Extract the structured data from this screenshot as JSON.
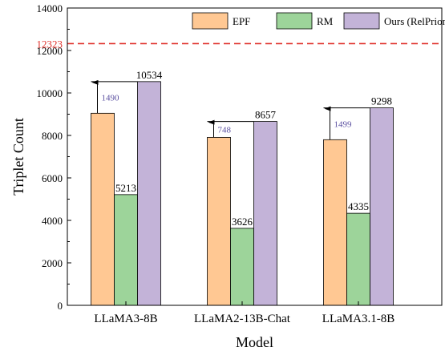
{
  "chart_data": {
    "type": "bar",
    "categories": [
      "LLaMA3-8B",
      "LLaMA2-13B-Chat",
      "LLaMA3.1-8B"
    ],
    "series": [
      {
        "name": "EPF",
        "values": [
          9044,
          7909,
          7799
        ],
        "color": "#ffc893"
      },
      {
        "name": "RM",
        "values": [
          5213,
          3626,
          4335
        ],
        "color": "#9dd49a"
      },
      {
        "name": "Ours (RelPrior)",
        "values": [
          10534,
          8657,
          9298
        ],
        "color": "#c3b3d8"
      }
    ],
    "data_labels": {
      "RM": [
        "5213",
        "3626",
        "4335"
      ],
      "Ours (RelPrior)": [
        "10534",
        "8657",
        "9298"
      ]
    },
    "improvements": [
      "1490",
      "748",
      "1499"
    ],
    "reference_line": {
      "value": 12323,
      "label": "12323",
      "color": "#e0302a"
    },
    "xlabel": "Model",
    "ylabel": "Triplet Count",
    "ylim": [
      0,
      14000
    ],
    "yticks": [
      "0",
      "2000",
      "4000",
      "6000",
      "8000",
      "10000",
      "12000",
      "14000"
    ],
    "legend_position": "top-right",
    "grid": false,
    "improvement_color": "#5a4fa0"
  }
}
